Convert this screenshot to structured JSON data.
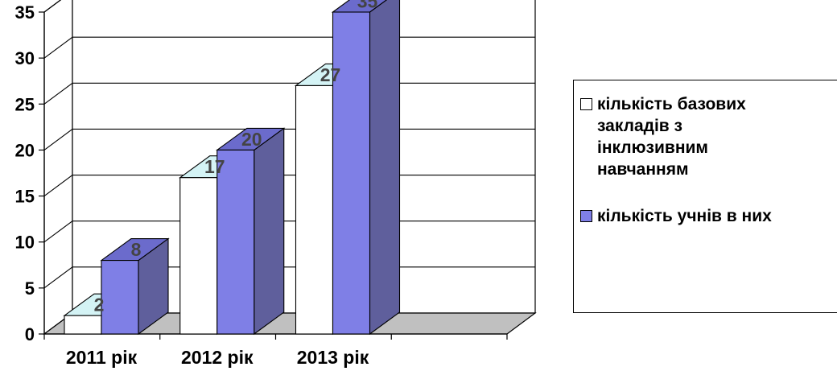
{
  "chart_data": {
    "type": "bar",
    "categories": [
      "2011 рік",
      "2012 рік",
      "2013 рік"
    ],
    "series": [
      {
        "name": "кількість базових закладів з інклюзивним навчанням",
        "values": [
          2,
          17,
          27
        ],
        "color": "#ffffff",
        "top_color": "#d4f3f5"
      },
      {
        "name": "кількість учнів в них",
        "values": [
          8,
          20,
          35
        ],
        "color": "#7f7fe6",
        "side_color": "#5f5f9c",
        "top_color": "#6b6bcc"
      }
    ],
    "y_ticks": [
      "0",
      "5",
      "10",
      "15",
      "20",
      "25",
      "30",
      "35"
    ],
    "ylim": [
      0,
      35
    ],
    "grid": true,
    "legend_position": "right",
    "data_labels": true,
    "floor_color": "#c0c0c0"
  },
  "legend": {
    "item1_lines": [
      "кількість базових",
      "закладів з",
      "інклюзивним",
      "навчанням"
    ],
    "item2": "кількість учнів в них"
  }
}
